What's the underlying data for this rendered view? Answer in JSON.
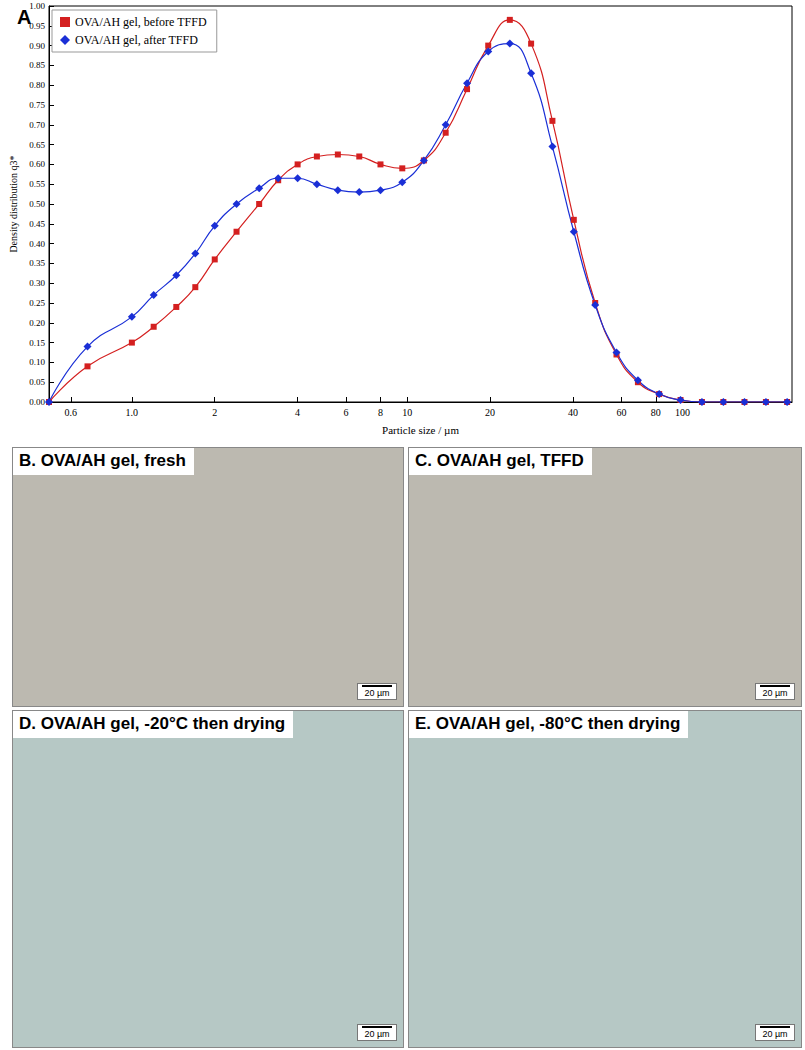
{
  "chart_data": {
    "type": "line",
    "title": "A",
    "x_label": "Particle size / µm",
    "y_label": "Density distribution q3*",
    "log": "x",
    "grid": false,
    "legend": "upper left",
    "xlim": [
      0.5,
      250
    ],
    "xticks": [
      0.6,
      {
        "value": 1,
        "label": "1.0"
      },
      2,
      4,
      6,
      8,
      10,
      20,
      40,
      60,
      80,
      100
    ],
    "ylim": [
      0,
      1
    ],
    "yticks": [
      {
        "value": 0,
        "label": "0.00"
      },
      {
        "value": 0.05,
        "label": "0.05"
      },
      {
        "value": 0.1,
        "label": "0.10"
      },
      {
        "value": 0.15,
        "label": "0.15"
      },
      {
        "value": 0.2,
        "label": "0.20"
      },
      {
        "value": 0.25,
        "label": "0.25"
      },
      {
        "value": 0.3,
        "label": "0.30"
      },
      {
        "value": 0.35,
        "label": "0.35"
      },
      {
        "value": 0.4,
        "label": "0.40"
      },
      {
        "value": 0.45,
        "label": "0.45"
      },
      {
        "value": 0.5,
        "label": "0.50"
      },
      {
        "value": 0.55,
        "label": "0.55"
      },
      {
        "value": 0.6,
        "label": "0.60"
      },
      {
        "value": 0.65,
        "label": "0.65"
      },
      {
        "value": 0.7,
        "label": "0.70"
      },
      {
        "value": 0.75,
        "label": "0.75"
      },
      {
        "value": 0.8,
        "label": "0.80"
      },
      {
        "value": 0.85,
        "label": "0.85"
      },
      {
        "value": 0.9,
        "label": "0.90"
      },
      {
        "value": 0.95,
        "label": "0.95"
      },
      {
        "value": 1,
        "label": "1.00"
      }
    ],
    "x": [
      0.5,
      0.69,
      1.0,
      1.2,
      1.45,
      1.7,
      2.0,
      2.4,
      2.9,
      3.4,
      4.0,
      4.7,
      5.6,
      6.7,
      8.0,
      9.6,
      11.5,
      13.8,
      16.5,
      19.7,
      23.6,
      28.2,
      33.7,
      40.3,
      48.2,
      57.6,
      68.9,
      82.3,
      98.4,
      117.7,
      140.8,
      168,
      201,
      240
    ],
    "series": [
      {
        "name": "OVA/AH gel, before TFFD",
        "color": "#d42020",
        "marker": "square",
        "line_style": "solid",
        "values": [
          0,
          0.09,
          0.15,
          0.19,
          0.24,
          0.29,
          0.36,
          0.43,
          0.5,
          0.56,
          0.6,
          0.62,
          0.625,
          0.62,
          0.6,
          0.59,
          0.61,
          0.68,
          0.79,
          0.9,
          0.965,
          0.905,
          0.71,
          0.46,
          0.25,
          0.12,
          0.05,
          0.02,
          0.005,
          0,
          0,
          0,
          0,
          0
        ]
      },
      {
        "name": "OVA/AH gel, after TFFD",
        "color": "#1a2fd6",
        "marker": "diamond",
        "line_style": "solid",
        "values": [
          0,
          0.14,
          0.215,
          0.27,
          0.32,
          0.375,
          0.445,
          0.5,
          0.54,
          0.565,
          0.565,
          0.55,
          0.535,
          0.53,
          0.535,
          0.555,
          0.61,
          0.7,
          0.805,
          0.885,
          0.905,
          0.83,
          0.645,
          0.43,
          0.245,
          0.125,
          0.055,
          0.02,
          0.005,
          0,
          0,
          0,
          0,
          0
        ]
      }
    ]
  },
  "panels": [
    {
      "title": "B. OVA/AH gel, fresh",
      "scale_bar": "20 µm"
    },
    {
      "title": "C. OVA/AH gel, TFFD",
      "scale_bar": "20 µm"
    },
    {
      "title": "D. OVA/AH gel, -20°C then drying",
      "scale_bar": "20 µm"
    },
    {
      "title": "E. OVA/AH gel, -80°C then drying",
      "scale_bar": "20 µm"
    }
  ]
}
